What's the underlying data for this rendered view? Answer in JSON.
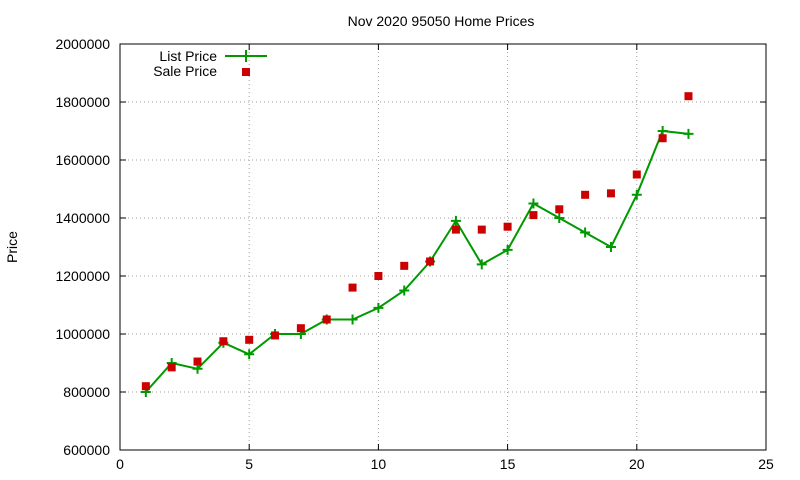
{
  "chart_data": {
    "type": "line",
    "title": "Nov 2020 95050 Home Prices",
    "xlabel": "",
    "ylabel": "Price",
    "xlim": [
      0,
      25
    ],
    "ylim": [
      600000,
      2000000
    ],
    "x_ticks": [
      0,
      5,
      10,
      15,
      20,
      25
    ],
    "x_tick_labels": [
      "0",
      "5",
      "10",
      "15",
      "20",
      "25"
    ],
    "y_ticks": [
      600000,
      800000,
      1000000,
      1200000,
      1400000,
      1600000,
      1800000,
      2000000
    ],
    "y_tick_labels": [
      "600000",
      "800000",
      "1000000",
      "1200000",
      "1400000",
      "1600000",
      "1800000",
      "2000000"
    ],
    "grid": true,
    "legend_position": "top-left",
    "series": [
      {
        "name": "List Price",
        "style": "line+cross",
        "color": "#009900",
        "x": [
          1,
          2,
          3,
          4,
          5,
          6,
          7,
          8,
          9,
          10,
          11,
          12,
          13,
          14,
          15,
          16,
          17,
          18,
          19,
          20,
          21,
          22
        ],
        "y": [
          800000,
          900000,
          880000,
          970000,
          930000,
          1000000,
          1000000,
          1050000,
          1050000,
          1090000,
          1150000,
          1250000,
          1390000,
          1240000,
          1290000,
          1450000,
          1400000,
          1350000,
          1300000,
          1480000,
          1700000,
          1690000
        ]
      },
      {
        "name": "Sale Price",
        "style": "square",
        "color": "#cc0000",
        "x": [
          1,
          2,
          3,
          4,
          5,
          6,
          7,
          8,
          9,
          10,
          11,
          12,
          13,
          14,
          15,
          16,
          17,
          18,
          19,
          20,
          21,
          22
        ],
        "y": [
          820000,
          885000,
          905000,
          975000,
          980000,
          995000,
          1020000,
          1050000,
          1160000,
          1200000,
          1235000,
          1250000,
          1360000,
          1360000,
          1370000,
          1410000,
          1430000,
          1480000,
          1485000,
          1550000,
          1675000,
          1820000
        ]
      }
    ]
  }
}
